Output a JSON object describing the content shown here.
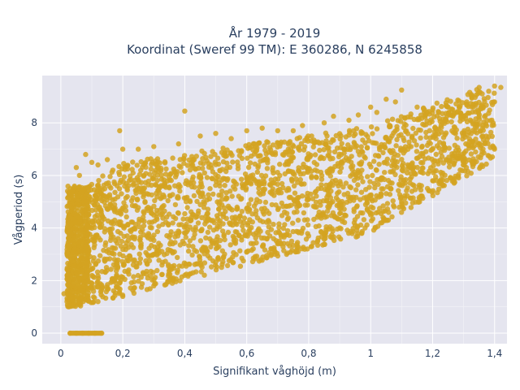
{
  "chart_data": {
    "type": "scatter",
    "title": "År 1979 - 2019",
    "subtitle": "Koordinat (Sweref 99 TM): E 360286, N 6245858",
    "xlabel": "Signifikant våghöjd (m)",
    "ylabel": "Vågperiod (s)",
    "xlim": [
      -0.06,
      1.44
    ],
    "ylim": [
      -0.4,
      9.8
    ],
    "x_ticks": [
      0,
      0.2,
      0.4,
      0.6,
      0.8,
      1,
      1.2,
      1.4
    ],
    "x_tick_labels": [
      "0",
      "0,2",
      "0,4",
      "0,6",
      "0,8",
      "1",
      "1,2",
      "1,4"
    ],
    "y_ticks": [
      0,
      2,
      4,
      6,
      8
    ],
    "y_tick_labels": [
      "0",
      "2",
      "4",
      "6",
      "8"
    ],
    "grid": true,
    "marker_color": "#d4a321",
    "plot_background": "#e5e5ef",
    "series": [
      {
        "name": "",
        "description": "dense cloud of observations; envelope points",
        "points": [
          [
            0.03,
            0.0
          ],
          [
            0.05,
            0.0
          ],
          [
            0.07,
            0.0
          ],
          [
            0.09,
            0.0
          ],
          [
            0.11,
            0.0
          ],
          [
            0.13,
            0.0
          ],
          [
            0.01,
            1.5
          ],
          [
            0.02,
            1.2
          ],
          [
            0.03,
            4.9
          ],
          [
            0.04,
            5.5
          ],
          [
            0.05,
            6.3
          ],
          [
            0.06,
            6.0
          ],
          [
            0.08,
            6.8
          ],
          [
            0.1,
            6.5
          ],
          [
            0.12,
            6.4
          ],
          [
            0.15,
            6.6
          ],
          [
            0.19,
            7.7
          ],
          [
            0.2,
            7.0
          ],
          [
            0.25,
            7.0
          ],
          [
            0.3,
            7.1
          ],
          [
            0.38,
            7.2
          ],
          [
            0.4,
            8.45
          ],
          [
            0.45,
            7.5
          ],
          [
            0.5,
            7.6
          ],
          [
            0.55,
            7.4
          ],
          [
            0.6,
            7.7
          ],
          [
            0.65,
            7.8
          ],
          [
            0.7,
            7.7
          ],
          [
            0.75,
            7.7
          ],
          [
            0.78,
            7.9
          ],
          [
            0.85,
            8.0
          ],
          [
            0.88,
            8.25
          ],
          [
            0.93,
            8.1
          ],
          [
            0.96,
            8.3
          ],
          [
            1.0,
            8.6
          ],
          [
            1.02,
            8.4
          ],
          [
            1.05,
            8.9
          ],
          [
            1.08,
            8.8
          ],
          [
            1.1,
            9.25
          ],
          [
            1.15,
            8.6
          ],
          [
            1.2,
            8.5
          ],
          [
            1.22,
            8.4
          ],
          [
            1.25,
            8.6
          ],
          [
            1.28,
            8.4
          ],
          [
            1.31,
            8.8
          ],
          [
            1.35,
            9.35
          ],
          [
            1.4,
            9.4
          ],
          [
            1.42,
            9.35
          ],
          [
            0.12,
            1.2
          ],
          [
            0.2,
            1.4
          ],
          [
            0.3,
            1.8
          ],
          [
            0.4,
            2.2
          ],
          [
            0.5,
            2.7
          ],
          [
            0.6,
            3.1
          ],
          [
            0.7,
            3.4
          ],
          [
            0.8,
            3.7
          ],
          [
            0.9,
            4.0
          ],
          [
            0.95,
            4.1
          ],
          [
            1.0,
            4.5
          ],
          [
            1.1,
            5.0
          ],
          [
            1.2,
            5.8
          ],
          [
            1.3,
            6.7
          ],
          [
            1.4,
            8.8
          ]
        ]
      }
    ]
  }
}
